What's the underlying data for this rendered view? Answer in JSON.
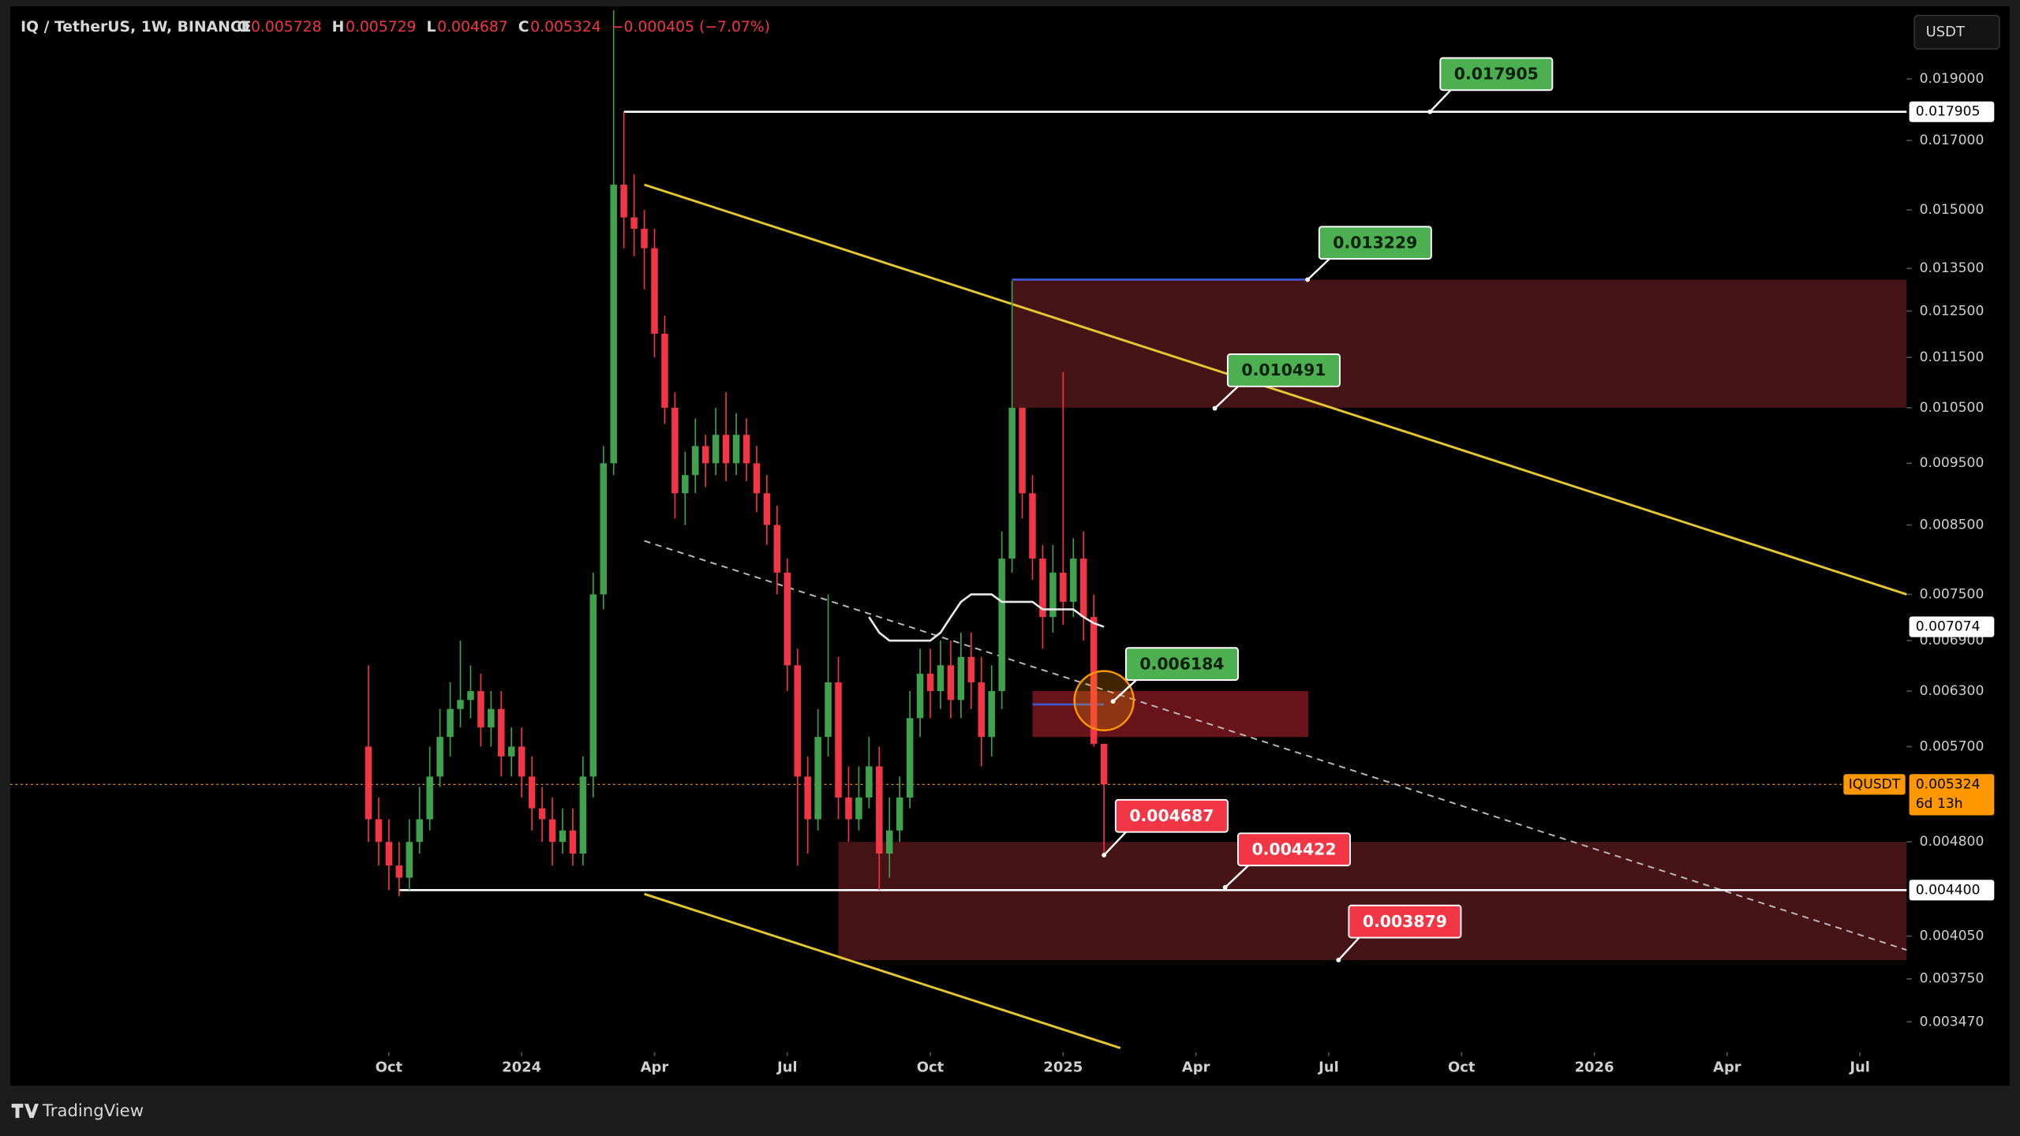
{
  "chart_data": {
    "type": "candlestick",
    "title": "IQ / TetherUS, 1W, BINANCE",
    "legend": [
      {
        "key": "O",
        "value": 0.005728
      },
      {
        "key": "H",
        "value": 0.005729
      },
      {
        "key": "L",
        "value": 0.004687
      },
      {
        "key": "C",
        "value": 0.005324
      }
    ],
    "change_label": "−0.000405 (−7.07%)",
    "currency_button": "USDT",
    "brand": "TradingView",
    "log_scale": true,
    "up_color": "#3fa34d",
    "down_color": "#f23645",
    "xlim": [
      -35.06,
      150.57
    ],
    "xticks": [
      {
        "value": 2,
        "label": "Oct"
      },
      {
        "value": 15,
        "label": "2024"
      },
      {
        "value": 28,
        "label": "Apr"
      },
      {
        "value": 41,
        "label": "Jul"
      },
      {
        "value": 55,
        "label": "Oct"
      },
      {
        "value": 68,
        "label": "2025"
      },
      {
        "value": 81,
        "label": "Apr"
      },
      {
        "value": 94,
        "label": "Jul"
      },
      {
        "value": 107,
        "label": "Oct"
      },
      {
        "value": 120,
        "label": "2026"
      },
      {
        "value": 133,
        "label": "Apr"
      },
      {
        "value": 146,
        "label": "Jul"
      }
    ],
    "ylim": [
      0.0033,
      0.0215
    ],
    "yticks": [
      {
        "value": 0.019,
        "label": "0.019000"
      },
      {
        "value": 0.017,
        "label": "0.017000"
      },
      {
        "value": 0.015,
        "label": "0.015000"
      },
      {
        "value": 0.0135,
        "label": "0.013500"
      },
      {
        "value": 0.0125,
        "label": "0.012500"
      },
      {
        "value": 0.0115,
        "label": "0.011500"
      },
      {
        "value": 0.0105,
        "label": "0.010500"
      },
      {
        "value": 0.0095,
        "label": "0.009500"
      },
      {
        "value": 0.0085,
        "label": "0.008500"
      },
      {
        "value": 0.0075,
        "label": "0.007500"
      },
      {
        "value": 0.0069,
        "label": "0.006900"
      },
      {
        "value": 0.0063,
        "label": "0.006300"
      },
      {
        "value": 0.0057,
        "label": "0.005700"
      },
      {
        "value": 0.0048,
        "label": "0.004800"
      },
      {
        "value": 0.00405,
        "label": "0.004050"
      },
      {
        "value": 0.00375,
        "label": "0.003750"
      },
      {
        "value": 0.00347,
        "label": "0.003470"
      }
    ],
    "open": [
      0.0057,
      0.005,
      0.0048,
      0.0046,
      0.0045,
      0.0048,
      0.005,
      0.0054,
      0.0058,
      0.0061,
      0.0062,
      0.0063,
      0.0059,
      0.0061,
      0.0056,
      0.0057,
      0.0054,
      0.0051,
      0.005,
      0.0048,
      0.0049,
      0.0047,
      0.0054,
      0.0075,
      0.0095,
      0.0157,
      0.0148,
      0.0145,
      0.014,
      0.012,
      0.0105,
      0.009,
      0.0093,
      0.0098,
      0.0095,
      0.01,
      0.0095,
      0.01,
      0.0095,
      0.009,
      0.0085,
      0.0078,
      0.0066,
      0.0054,
      0.005,
      0.0058,
      0.0064,
      0.0052,
      0.005,
      0.0052,
      0.0055,
      0.0047,
      0.0049,
      0.0052,
      0.006,
      0.0065,
      0.0063,
      0.0066,
      0.0062,
      0.0067,
      0.0064,
      0.0058,
      0.0063,
      0.008,
      0.0105,
      0.009,
      0.008,
      0.0072,
      0.0078,
      0.0074,
      0.008,
      0.0072,
      0.005728
    ],
    "high": [
      0.0066,
      0.0052,
      0.005,
      0.0048,
      0.005,
      0.0053,
      0.0057,
      0.0061,
      0.0064,
      0.0069,
      0.0066,
      0.0065,
      0.0063,
      0.0063,
      0.0059,
      0.0059,
      0.0056,
      0.0053,
      0.0052,
      0.0051,
      0.0051,
      0.0056,
      0.0078,
      0.0098,
      0.0215,
      0.0179,
      0.016,
      0.015,
      0.0145,
      0.0124,
      0.0108,
      0.0097,
      0.0103,
      0.01,
      0.0105,
      0.0108,
      0.0104,
      0.0103,
      0.0098,
      0.0093,
      0.0088,
      0.008,
      0.0068,
      0.0056,
      0.0061,
      0.0075,
      0.0067,
      0.0055,
      0.0055,
      0.0058,
      0.0057,
      0.0052,
      0.0054,
      0.0063,
      0.0068,
      0.0068,
      0.0069,
      0.0069,
      0.007,
      0.007,
      0.0067,
      0.0066,
      0.0084,
      0.0132,
      0.0105,
      0.0093,
      0.0082,
      0.0082,
      0.0112,
      0.0083,
      0.0084,
      0.0075,
      0.005729
    ],
    "low": [
      0.0048,
      0.0046,
      0.0044,
      0.00435,
      0.0044,
      0.0047,
      0.0049,
      0.0053,
      0.0056,
      0.0059,
      0.006,
      0.0057,
      0.0057,
      0.0054,
      0.0054,
      0.0052,
      0.0049,
      0.0048,
      0.0046,
      0.0047,
      0.0046,
      0.0046,
      0.0052,
      0.0073,
      0.0093,
      0.014,
      0.0138,
      0.013,
      0.0115,
      0.0102,
      0.0086,
      0.0085,
      0.009,
      0.0091,
      0.0093,
      0.0092,
      0.0093,
      0.0092,
      0.0087,
      0.0082,
      0.0075,
      0.0063,
      0.0046,
      0.0047,
      0.0049,
      0.0056,
      0.005,
      0.0048,
      0.0049,
      0.0051,
      0.0044,
      0.0045,
      0.0048,
      0.0051,
      0.0058,
      0.006,
      0.0061,
      0.006,
      0.006,
      0.0061,
      0.0055,
      0.0056,
      0.0061,
      0.0078,
      0.0086,
      0.0077,
      0.0068,
      0.007,
      0.0071,
      0.0072,
      0.0069,
      0.0057,
      0.004687
    ],
    "close": [
      0.005,
      0.0048,
      0.0046,
      0.0045,
      0.0048,
      0.005,
      0.0054,
      0.0058,
      0.0061,
      0.0062,
      0.0063,
      0.0059,
      0.0061,
      0.0056,
      0.0057,
      0.0054,
      0.0051,
      0.005,
      0.0048,
      0.0049,
      0.0047,
      0.0054,
      0.0075,
      0.0095,
      0.0157,
      0.0148,
      0.0145,
      0.014,
      0.012,
      0.0105,
      0.009,
      0.0093,
      0.0098,
      0.0095,
      0.01,
      0.0095,
      0.01,
      0.0095,
      0.009,
      0.0085,
      0.0078,
      0.0066,
      0.0054,
      0.005,
      0.0058,
      0.0064,
      0.0052,
      0.005,
      0.0052,
      0.0055,
      0.0047,
      0.0049,
      0.0052,
      0.006,
      0.0065,
      0.0063,
      0.0066,
      0.0062,
      0.0067,
      0.0064,
      0.0058,
      0.0063,
      0.008,
      0.0105,
      0.009,
      0.008,
      0.0072,
      0.0078,
      0.0074,
      0.008,
      0.0072,
      0.005728,
      0.005324
    ],
    "ma": [
      null,
      null,
      null,
      null,
      null,
      null,
      null,
      null,
      null,
      null,
      null,
      null,
      null,
      null,
      null,
      null,
      null,
      null,
      null,
      null,
      null,
      null,
      null,
      null,
      null,
      null,
      null,
      null,
      null,
      null,
      null,
      null,
      null,
      null,
      null,
      null,
      null,
      null,
      null,
      null,
      null,
      null,
      null,
      null,
      null,
      null,
      null,
      null,
      null,
      0.0072,
      0.007,
      0.0069,
      0.0069,
      0.0069,
      0.0069,
      0.0069,
      0.007,
      0.0072,
      0.0074,
      0.0075,
      0.0075,
      0.0075,
      0.0074,
      0.0074,
      0.0074,
      0.0074,
      0.0073,
      0.0073,
      0.0073,
      0.0073,
      0.0072,
      0.00712,
      0.007074
    ],
    "ma_color": "#e8e8e8",
    "zones": [
      {
        "from": 63,
        "to": 150.57,
        "low": 0.0105,
        "high": 0.013229,
        "color": "#4a1418"
      },
      {
        "from": 46,
        "to": 150.57,
        "low": 0.003879,
        "high": 0.0048,
        "color": "#4a1418"
      },
      {
        "from": 65,
        "to": 92,
        "low": 0.0058,
        "high": 0.0063,
        "color": "#6e151b"
      }
    ],
    "hlines": [
      {
        "value": 0.017905,
        "from": 25,
        "to": 150.57,
        "color": "#ffffff"
      },
      {
        "value": 0.0044,
        "from": 3,
        "to": 150.57,
        "color": "#ffffff"
      },
      {
        "value": 0.013229,
        "from": 63,
        "to": 92,
        "color": "#3d5bd6"
      },
      {
        "value": 0.00615,
        "from": 65,
        "to": 72,
        "color": "#3d5bd6"
      }
    ],
    "trendlines": [
      {
        "points": [
          [
            27,
            0.0157
          ],
          [
            150.57,
            0.0075
          ]
        ],
        "color": "#e5c730",
        "dashed": false
      },
      {
        "points": [
          [
            27,
            0.00437
          ],
          [
            73.6,
            0.00331
          ]
        ],
        "color": "#e5c730",
        "dashed": false
      },
      {
        "points": [
          [
            27,
            0.00826
          ],
          [
            150.57,
            0.00395
          ]
        ],
        "color": "#bbbbbb",
        "dashed": true
      }
    ],
    "callouts": [
      {
        "value": 0.017905,
        "color": "#4caf50"
      },
      {
        "value": 0.013229,
        "color": "#4caf50"
      },
      {
        "value": 0.010491,
        "color": "#4caf50"
      },
      {
        "value": 0.006184,
        "color": "#4caf50"
      },
      {
        "value": 0.004687,
        "color": "#f23645"
      },
      {
        "value": 0.004422,
        "color": "#f23645"
      },
      {
        "value": 0.003879,
        "color": "#f23645"
      }
    ],
    "axis_badges": [
      {
        "value": 0.017905,
        "label": "0.017905"
      },
      {
        "value": 0.007074,
        "label": "0.007074"
      },
      {
        "value": 0.0044,
        "label": "0.004400"
      }
    ],
    "last_price": {
      "value": 0.005324,
      "label": "0.005324",
      "symbol": "IQUSDT",
      "countdown": "6d 13h",
      "color": "#ff9800"
    }
  }
}
